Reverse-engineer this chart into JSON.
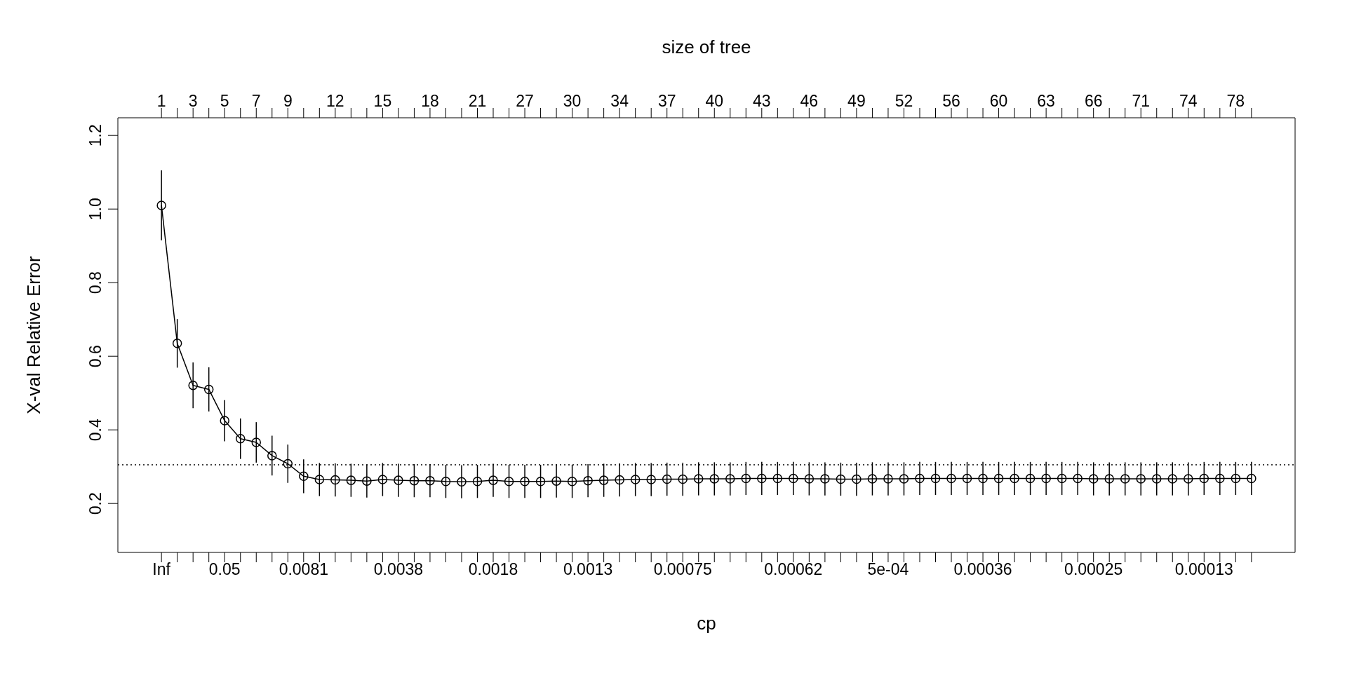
{
  "chart_data": {
    "type": "line",
    "xlabel": "cp",
    "ylabel": "X-val Relative Error",
    "x2label": "size of tree",
    "categories": [
      "Inf",
      null,
      null,
      null,
      "0.05",
      null,
      null,
      null,
      null,
      "0.0081",
      null,
      null,
      null,
      null,
      null,
      "0.0038",
      null,
      null,
      null,
      null,
      null,
      "0.0018",
      null,
      null,
      null,
      null,
      null,
      "0.0013",
      null,
      null,
      null,
      null,
      null,
      "0.00075",
      null,
      null,
      null,
      null,
      null,
      null,
      "0.00062",
      null,
      null,
      null,
      null,
      null,
      "5e-04",
      null,
      null,
      null,
      null,
      null,
      "0.00036",
      null,
      null,
      null,
      null,
      null,
      null,
      "0.00025",
      null,
      null,
      null,
      null,
      null,
      null,
      "0.00013",
      null,
      null,
      null
    ],
    "values": [
      1.01,
      0.635,
      0.521,
      0.51,
      0.425,
      0.376,
      0.366,
      0.33,
      0.308,
      0.274,
      0.265,
      0.264,
      0.263,
      0.261,
      0.265,
      0.263,
      0.262,
      0.262,
      0.26,
      0.259,
      0.26,
      0.263,
      0.26,
      0.26,
      0.26,
      0.261,
      0.26,
      0.262,
      0.263,
      0.264,
      0.265,
      0.265,
      0.266,
      0.266,
      0.267,
      0.267,
      0.267,
      0.268,
      0.268,
      0.268,
      0.268,
      0.267,
      0.267,
      0.266,
      0.266,
      0.267,
      0.267,
      0.267,
      0.268,
      0.268,
      0.268,
      0.268,
      0.268,
      0.268,
      0.268,
      0.268,
      0.268,
      0.268,
      0.268,
      0.267,
      0.267,
      0.267,
      0.267,
      0.267,
      0.267,
      0.267,
      0.268,
      0.268,
      0.268,
      0.268
    ],
    "errors": [
      0.095,
      0.066,
      0.062,
      0.06,
      0.056,
      0.055,
      0.055,
      0.054,
      0.052,
      0.046,
      0.045,
      0.045,
      0.045,
      0.045,
      0.045,
      0.045,
      0.045,
      0.045,
      0.045,
      0.045,
      0.045,
      0.045,
      0.045,
      0.045,
      0.045,
      0.045,
      0.045,
      0.045,
      0.045,
      0.045,
      0.045,
      0.045,
      0.045,
      0.045,
      0.045,
      0.045,
      0.045,
      0.045,
      0.045,
      0.045,
      0.045,
      0.045,
      0.045,
      0.045,
      0.045,
      0.045,
      0.045,
      0.045,
      0.045,
      0.045,
      0.045,
      0.045,
      0.045,
      0.045,
      0.045,
      0.045,
      0.045,
      0.045,
      0.045,
      0.045,
      0.045,
      0.045,
      0.045,
      0.045,
      0.045,
      0.045,
      0.045,
      0.045,
      0.045,
      0.045
    ],
    "color": "#000000",
    "marker": "circle",
    "line_style": "solid",
    "ylim": [
      0.067,
      1.248
    ],
    "yticks": [
      {
        "value": 0.2,
        "label": "0.2"
      },
      {
        "value": 0.4,
        "label": "0.4"
      },
      {
        "value": 0.6,
        "label": "0.6"
      },
      {
        "value": 0.8,
        "label": "0.8"
      },
      {
        "value": 1.0,
        "label": "1.0"
      },
      {
        "value": 1.2,
        "label": "1.2"
      }
    ],
    "annotations": [
      "1",
      "3",
      "5",
      "7",
      "9",
      "12",
      "15",
      "18",
      "21",
      "27",
      "30",
      "34",
      "37",
      "40",
      "43",
      "46",
      "49",
      "52",
      "56",
      "60",
      "63",
      "66",
      "71",
      "74",
      "78"
    ],
    "ref_lines": [
      {
        "axis": "y",
        "value": 0.305,
        "line_style": "dotted"
      }
    ]
  }
}
